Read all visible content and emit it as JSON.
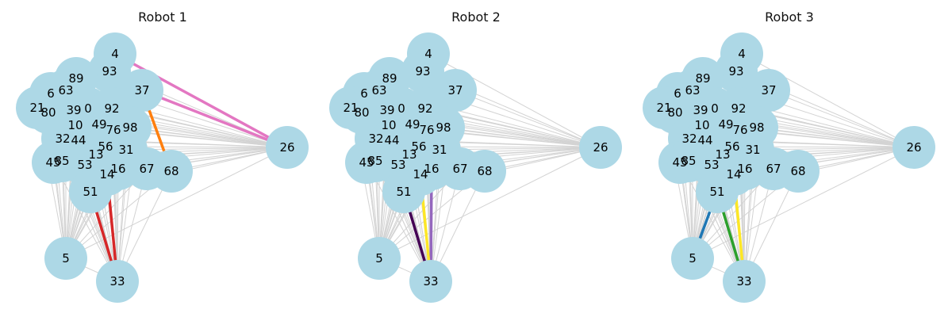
{
  "colors": {
    "node_fill": "#add8e6",
    "edge_base": "#d3d3d3",
    "pink": "#e377c2",
    "orange": "#ff7f0e",
    "red": "#d62728",
    "purple": "#9467bd",
    "dark_purple": "#440154",
    "yellow": "#fde725",
    "blue": "#1f77b4",
    "green": "#2ca02c"
  },
  "panels": [
    {
      "title": "Robot 1",
      "highlights": [
        {
          "from": "4",
          "to": "26",
          "color": "pink"
        },
        {
          "from": "37",
          "to": "26",
          "color": "pink"
        },
        {
          "from": "37",
          "to": "68",
          "color": "orange"
        },
        {
          "from": "51",
          "to": "33",
          "color": "red"
        },
        {
          "from": "14",
          "to": "33",
          "color": "red"
        }
      ]
    },
    {
      "title": "Robot 2",
      "highlights": [
        {
          "from": "16",
          "to": "33",
          "color": "purple"
        },
        {
          "from": "51",
          "to": "33",
          "color": "dark_purple"
        },
        {
          "from": "14",
          "to": "33",
          "color": "yellow"
        }
      ]
    },
    {
      "title": "Robot 3",
      "highlights": [
        {
          "from": "51",
          "to": "5",
          "color": "blue"
        },
        {
          "from": "14",
          "to": "33",
          "color": "yellow"
        },
        {
          "from": "51",
          "to": "33",
          "color": "green"
        }
      ]
    }
  ],
  "nodes": [
    "4",
    "93",
    "89",
    "63",
    "6",
    "37",
    "21",
    "80",
    "39",
    "0",
    "92",
    "10",
    "49",
    "76",
    "98",
    "32",
    "44",
    "56",
    "13",
    "31",
    "45",
    "85",
    "53",
    "16",
    "14",
    "67",
    "68",
    "51",
    "26",
    "5",
    "33"
  ]
}
